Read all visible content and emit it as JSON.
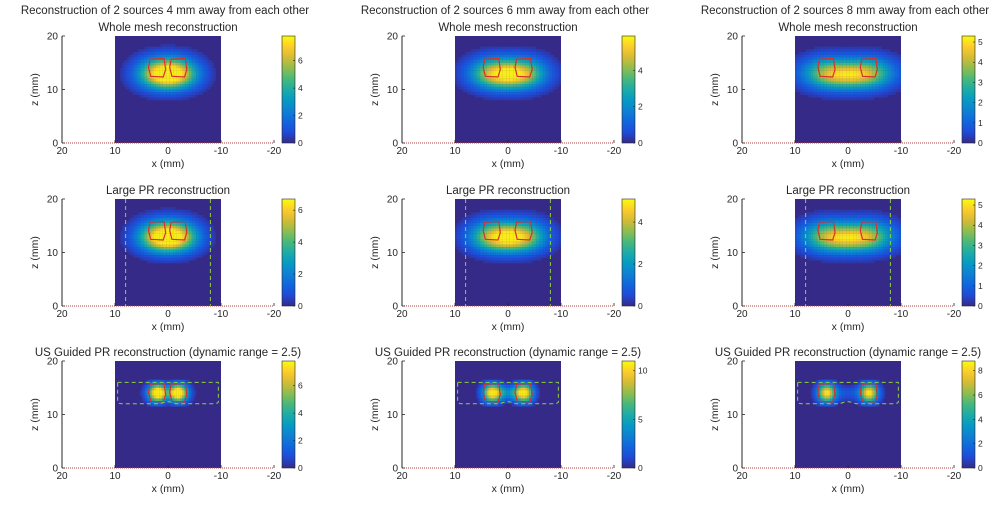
{
  "figure": {
    "column_titles": [
      "Reconstruction of 2 sources 4 mm away from each other",
      "Reconstruction of 2 sources 6 mm away from each other",
      "Reconstruction of 2 sources 8 mm away from each other"
    ],
    "row_titles": [
      "Whole mesh reconstruction",
      "Large PR reconstruction",
      "US Guided PR reconstruction (dynamic range = 2.5)"
    ]
  },
  "colors": {
    "colormap": "parula",
    "source_outline": "#d9302a",
    "region_boundary": "#8cd23a",
    "axis_baseline": "#b04040"
  },
  "chart_data": [
    {
      "type": "heatmap",
      "title": "Whole mesh reconstruction",
      "xlabel": "x (mm)",
      "ylabel": "z (mm)",
      "xlim": [
        20,
        -20
      ],
      "ylim": [
        0,
        20
      ],
      "xticks": [
        20,
        10,
        0,
        -10,
        -20
      ],
      "yticks": [
        0,
        10,
        20
      ],
      "mesh_x": [
        10,
        -10
      ],
      "sources_x": [
        2,
        -2
      ],
      "source_z": 14,
      "pr_region": "none",
      "colorbar": {
        "min": 0,
        "max": 7.8,
        "ticks": [
          0,
          2,
          4,
          6
        ]
      }
    },
    {
      "type": "heatmap",
      "title": "Whole mesh reconstruction",
      "xlabel": "x (mm)",
      "ylabel": "z (mm)",
      "xlim": [
        20,
        -20
      ],
      "ylim": [
        0,
        20
      ],
      "xticks": [
        20,
        10,
        0,
        -10,
        -20
      ],
      "yticks": [
        0,
        10,
        20
      ],
      "mesh_x": [
        10,
        -10
      ],
      "sources_x": [
        3,
        -3
      ],
      "source_z": 14,
      "pr_region": "none",
      "colorbar": {
        "min": 0,
        "max": 5.9,
        "ticks": [
          0,
          2,
          4
        ]
      }
    },
    {
      "type": "heatmap",
      "title": "Whole mesh reconstruction",
      "xlabel": "x (mm)",
      "ylabel": "z (mm)",
      "xlim": [
        20,
        -20
      ],
      "ylim": [
        0,
        20
      ],
      "xticks": [
        20,
        10,
        0,
        -10,
        -20
      ],
      "yticks": [
        0,
        10,
        20
      ],
      "mesh_x": [
        10,
        -10
      ],
      "sources_x": [
        4,
        -4
      ],
      "source_z": 14,
      "pr_region": "none",
      "colorbar": {
        "min": 0,
        "max": 5.3,
        "ticks": [
          0,
          1,
          2,
          3,
          4,
          5
        ]
      }
    },
    {
      "type": "heatmap",
      "title": "Large PR reconstruction",
      "xlabel": "x (mm)",
      "ylabel": "z (mm)",
      "xlim": [
        20,
        -20
      ],
      "ylim": [
        0,
        20
      ],
      "xticks": [
        20,
        10,
        0,
        -10,
        -20
      ],
      "yticks": [
        0,
        10,
        20
      ],
      "mesh_x": [
        10,
        -10
      ],
      "sources_x": [
        2,
        -2
      ],
      "source_z": 14,
      "pr_region": "vertical_lines",
      "pr_lines_x": [
        8,
        -8
      ],
      "colorbar": {
        "min": 0,
        "max": 6.7,
        "ticks": [
          0,
          2,
          4,
          6
        ]
      }
    },
    {
      "type": "heatmap",
      "title": "Large PR reconstruction",
      "xlabel": "x (mm)",
      "ylabel": "z (mm)",
      "xlim": [
        20,
        -20
      ],
      "ylim": [
        0,
        20
      ],
      "xticks": [
        20,
        10,
        0,
        -10,
        -20
      ],
      "yticks": [
        0,
        10,
        20
      ],
      "mesh_x": [
        10,
        -10
      ],
      "sources_x": [
        3,
        -3
      ],
      "source_z": 14,
      "pr_region": "vertical_lines",
      "pr_lines_x": [
        8,
        -8
      ],
      "colorbar": {
        "min": 0,
        "max": 5.1,
        "ticks": [
          0,
          2,
          4
        ]
      }
    },
    {
      "type": "heatmap",
      "title": "Large PR reconstruction",
      "xlabel": "x (mm)",
      "ylabel": "z (mm)",
      "xlim": [
        20,
        -20
      ],
      "ylim": [
        0,
        20
      ],
      "xticks": [
        20,
        10,
        0,
        -10,
        -20
      ],
      "yticks": [
        0,
        10,
        20
      ],
      "mesh_x": [
        10,
        -10
      ],
      "sources_x": [
        4,
        -4
      ],
      "source_z": 14,
      "pr_region": "vertical_lines",
      "pr_lines_x": [
        8,
        -8
      ],
      "colorbar": {
        "min": 0,
        "max": 5.3,
        "ticks": [
          0,
          1,
          2,
          3,
          4,
          5
        ]
      }
    },
    {
      "type": "heatmap",
      "title": "US Guided PR reconstruction (dynamic range = 2.5)",
      "xlabel": "x (mm)",
      "ylabel": "z (mm)",
      "xlim": [
        20,
        -20
      ],
      "ylim": [
        0,
        20
      ],
      "xticks": [
        20,
        10,
        0,
        -10,
        -20
      ],
      "yticks": [
        0,
        10,
        20
      ],
      "mesh_x": [
        10,
        -10
      ],
      "sources_x": [
        2,
        -2
      ],
      "source_z": 14,
      "pr_region": "dashed_box",
      "pr_box_z": [
        12,
        16
      ],
      "colorbar": {
        "min": 0,
        "max": 7.8,
        "ticks": [
          0,
          2,
          4,
          6
        ]
      }
    },
    {
      "type": "heatmap",
      "title": "US Guided PR reconstruction (dynamic range = 2.5)",
      "xlabel": "x (mm)",
      "ylabel": "z (mm)",
      "xlim": [
        20,
        -20
      ],
      "ylim": [
        0,
        20
      ],
      "xticks": [
        20,
        10,
        0,
        -10,
        -20
      ],
      "yticks": [
        0,
        10,
        20
      ],
      "mesh_x": [
        10,
        -10
      ],
      "sources_x": [
        3,
        -3
      ],
      "source_z": 14,
      "pr_region": "dashed_box",
      "pr_box_z": [
        12,
        16
      ],
      "colorbar": {
        "min": 0,
        "max": 11,
        "ticks": [
          0,
          5,
          10
        ]
      }
    },
    {
      "type": "heatmap",
      "title": "US Guided PR reconstruction (dynamic range = 2.5)",
      "xlabel": "x (mm)",
      "ylabel": "z (mm)",
      "xlim": [
        20,
        -20
      ],
      "ylim": [
        0,
        20
      ],
      "xticks": [
        20,
        10,
        0,
        -10,
        -20
      ],
      "yticks": [
        0,
        10,
        20
      ],
      "mesh_x": [
        10,
        -10
      ],
      "sources_x": [
        4,
        -4
      ],
      "source_z": 14,
      "pr_region": "dashed_box",
      "pr_box_z": [
        12,
        16
      ],
      "colorbar": {
        "min": 0,
        "max": 8.8,
        "ticks": [
          0,
          2,
          4,
          6,
          8
        ]
      }
    }
  ]
}
